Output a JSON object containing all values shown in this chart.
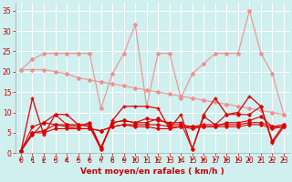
{
  "title": "",
  "xlabel": "Vent moyen/en rafales ( km/h )",
  "x": [
    0,
    1,
    2,
    3,
    4,
    5,
    6,
    7,
    8,
    9,
    10,
    11,
    12,
    13,
    14,
    15,
    16,
    17,
    18,
    19,
    20,
    21,
    22,
    23
  ],
  "series": [
    {
      "name": "line1_light_zigzag",
      "color": "#f09090",
      "linewidth": 0.8,
      "marker": "D",
      "markersize": 2.0,
      "y": [
        20.5,
        23.0,
        24.5,
        24.5,
        24.5,
        24.5,
        24.5,
        11.0,
        19.5,
        24.5,
        31.5,
        11.5,
        24.5,
        24.5,
        13.5,
        19.5,
        22.0,
        24.5,
        24.5,
        24.5,
        35.0,
        24.5,
        19.5,
        9.5
      ]
    },
    {
      "name": "line2_light_diagonal",
      "color": "#f09090",
      "linewidth": 0.8,
      "marker": "D",
      "markersize": 2.0,
      "y": [
        20.5,
        20.5,
        20.5,
        20.0,
        19.5,
        18.5,
        18.0,
        17.5,
        17.0,
        16.5,
        16.0,
        15.5,
        15.0,
        14.5,
        14.0,
        13.5,
        13.0,
        12.5,
        12.0,
        11.5,
        11.0,
        10.5,
        10.0,
        9.5
      ]
    },
    {
      "name": "line3_dark_high",
      "color": "#dd0000",
      "linewidth": 0.9,
      "marker": "+",
      "markersize": 3.0,
      "y": [
        0.5,
        13.5,
        4.5,
        9.5,
        9.5,
        7.0,
        7.0,
        1.0,
        8.0,
        11.5,
        11.5,
        11.5,
        11.0,
        6.0,
        9.5,
        1.0,
        9.5,
        13.5,
        9.5,
        10.0,
        14.0,
        11.5,
        2.5,
        6.5
      ]
    },
    {
      "name": "line4_dark_mid1",
      "color": "#dd0000",
      "linewidth": 0.8,
      "marker": "D",
      "markersize": 1.8,
      "y": [
        0.5,
        4.5,
        7.5,
        7.0,
        7.0,
        7.0,
        6.5,
        1.0,
        7.5,
        8.0,
        7.5,
        8.5,
        8.0,
        7.5,
        7.5,
        1.0,
        9.0,
        7.0,
        9.5,
        9.5,
        9.5,
        11.5,
        3.0,
        7.0
      ]
    },
    {
      "name": "line5_dark_mid2",
      "color": "#dd0000",
      "linewidth": 0.8,
      "marker": "D",
      "markersize": 1.8,
      "y": [
        0.5,
        6.5,
        7.5,
        9.5,
        7.0,
        6.5,
        7.5,
        1.5,
        7.5,
        8.0,
        7.5,
        7.5,
        8.5,
        7.0,
        7.0,
        6.5,
        6.5,
        6.5,
        7.5,
        7.5,
        8.0,
        9.0,
        6.5,
        6.5
      ]
    },
    {
      "name": "line6_dark_low1",
      "color": "#dd0000",
      "linewidth": 0.8,
      "marker": "D",
      "markersize": 1.8,
      "y": [
        0.5,
        5.0,
        5.5,
        7.0,
        6.5,
        6.0,
        6.0,
        5.5,
        6.5,
        7.0,
        6.5,
        6.5,
        6.0,
        6.0,
        6.5,
        6.0,
        6.5,
        6.5,
        6.5,
        6.5,
        7.0,
        7.0,
        6.0,
        6.5
      ]
    },
    {
      "name": "line7_dark_low2",
      "color": "#dd0000",
      "linewidth": 0.8,
      "marker": "D",
      "markersize": 1.8,
      "y": [
        0.5,
        5.0,
        5.0,
        6.0,
        6.0,
        6.0,
        6.0,
        5.5,
        6.5,
        7.0,
        7.0,
        7.0,
        7.0,
        6.5,
        6.5,
        6.5,
        7.0,
        7.0,
        7.0,
        7.0,
        7.5,
        7.5,
        6.5,
        7.0
      ]
    }
  ],
  "ylim": [
    0,
    37
  ],
  "xlim": [
    -0.5,
    23.5
  ],
  "yticks": [
    0,
    5,
    10,
    15,
    20,
    25,
    30,
    35
  ],
  "xticks": [
    0,
    1,
    2,
    3,
    4,
    5,
    6,
    7,
    8,
    9,
    10,
    11,
    12,
    13,
    14,
    15,
    16,
    17,
    18,
    19,
    20,
    21,
    22,
    23
  ],
  "bg_color": "#d0efef",
  "grid_color": "#ffffff",
  "tick_color": "#cc0000",
  "label_color": "#cc0000",
  "xlabel_fontsize": 6.5,
  "tick_fontsize": 5.5
}
